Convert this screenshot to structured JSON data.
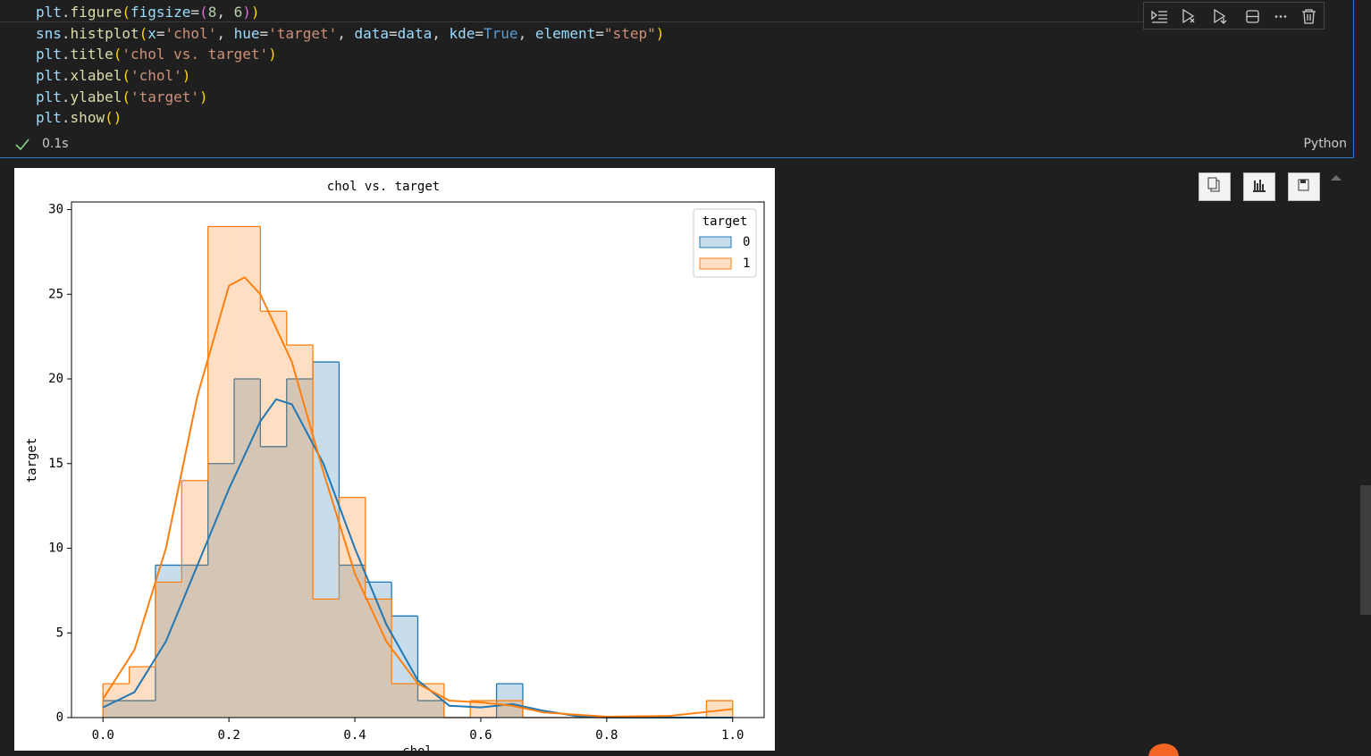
{
  "code": {
    "lines": [
      "plt.figure(figsize=(8, 6))",
      "sns.histplot(x='chol', hue='target', data=data, kde=True, element=\"step\")",
      "plt.title('chol vs. target')",
      "plt.xlabel('chol')",
      "plt.ylabel('target')",
      "plt.show()"
    ]
  },
  "status": {
    "time": "0.1s",
    "language": "Python"
  },
  "chart_data": {
    "type": "histogram",
    "title": "chol vs. target",
    "x_label": "chol",
    "y_label": "target",
    "bins": [
      0,
      0.0417,
      0.0833,
      0.125,
      0.1667,
      0.2083,
      0.25,
      0.2917,
      0.3333,
      0.375,
      0.4167,
      0.4583,
      0.5,
      0.5417,
      0.5833,
      0.625,
      0.6667,
      0.7083,
      0.75,
      0.7917,
      0.8333,
      0.875,
      0.9167,
      0.9583,
      1
    ],
    "series": [
      {
        "name": "0",
        "color": "#1f77b4",
        "values": [
          1,
          1,
          9,
          9,
          15,
          20,
          16,
          20,
          21,
          9,
          8,
          6,
          1,
          0,
          0,
          2,
          0,
          0,
          0,
          0,
          0,
          0,
          0,
          0
        ],
        "kde": {
          "x": [
            0,
            0.05,
            0.1,
            0.15,
            0.2,
            0.25,
            0.275,
            0.3,
            0.35,
            0.4,
            0.45,
            0.5,
            0.55,
            0.6,
            0.65,
            0.7,
            0.75,
            0.8,
            0.9,
            1
          ],
          "values": [
            0.6,
            1.5,
            4.5,
            9,
            13.5,
            17.5,
            18.8,
            18.5,
            15,
            10,
            5.5,
            2.2,
            0.7,
            0.6,
            0.8,
            0.4,
            0.1,
            0,
            0,
            0
          ]
        }
      },
      {
        "name": "1",
        "color": "#ff7f0e",
        "values": [
          2,
          3,
          8,
          14,
          29,
          29,
          24,
          22,
          7,
          13,
          7,
          2,
          2,
          0,
          1,
          1,
          0,
          0,
          0,
          0,
          0,
          0,
          0,
          1
        ],
        "kde": {
          "x": [
            0,
            0.05,
            0.1,
            0.15,
            0.2,
            0.225,
            0.25,
            0.3,
            0.35,
            0.4,
            0.45,
            0.5,
            0.55,
            0.6,
            0.65,
            0.7,
            0.8,
            0.9,
            0.95,
            1
          ],
          "values": [
            1.1,
            4,
            10,
            19,
            25.5,
            26,
            25,
            21,
            14.5,
            8.5,
            4.5,
            2,
            1,
            0.9,
            0.7,
            0.3,
            0.05,
            0.1,
            0.3,
            0.5
          ]
        }
      }
    ],
    "legend_title": "target",
    "legend": "upper right",
    "xlim": [
      -0.05,
      1.05
    ],
    "ylim": [
      0,
      30.45
    ],
    "xticks": [
      {
        "value": 0,
        "label": "0.0"
      },
      0.2,
      0.4,
      0.6,
      0.8,
      {
        "value": 1,
        "label": "1.0"
      }
    ],
    "yticks": [
      0,
      5,
      10,
      15,
      20,
      25,
      30
    ]
  }
}
